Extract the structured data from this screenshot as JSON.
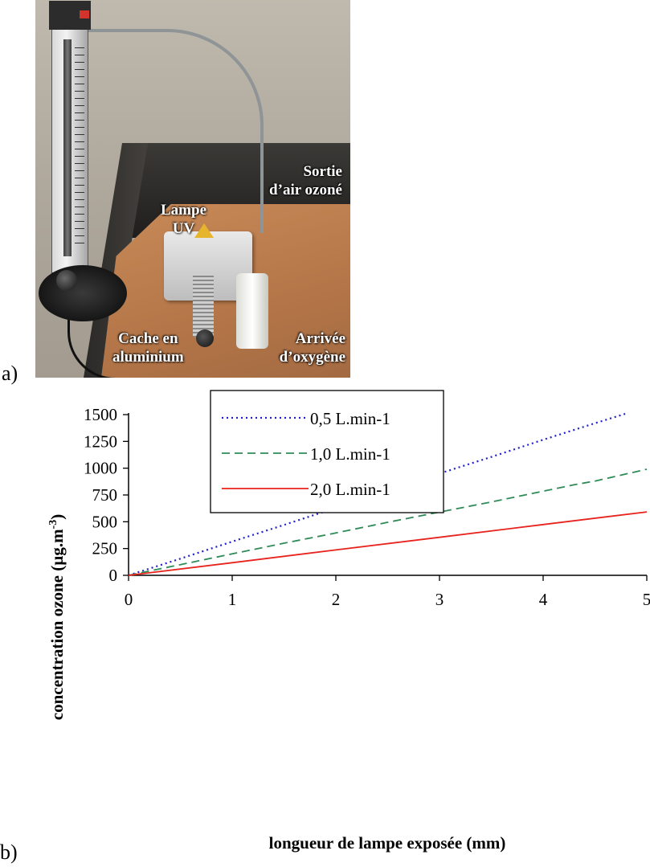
{
  "figure": {
    "panel_a_label": "a)",
    "panel_b_label": "b)"
  },
  "photo": {
    "labels": {
      "sortie": [
        "Sortie",
        "d’air ozoné"
      ],
      "lampe": [
        "Lampe",
        "UV"
      ],
      "cache": [
        "Cache en",
        "aluminium"
      ],
      "arrivee": [
        "Arrivée",
        "d’oxygène"
      ]
    }
  },
  "chart_data": {
    "type": "line",
    "title": "",
    "xlabel": "longueur de lampe exposée (mm)",
    "ylabel": "concentration ozone (µg.m",
    "ylabel_superscript": "-3",
    "ylabel_close": ")",
    "xlim": [
      0,
      5
    ],
    "ylim": [
      0,
      1500
    ],
    "x_ticks": [
      0,
      1,
      2,
      3,
      4,
      5
    ],
    "y_ticks": [
      0,
      250,
      500,
      750,
      1000,
      1250,
      1500
    ],
    "grid": false,
    "legend_position": "top-center",
    "series": [
      {
        "name": "0,5 L.min-1",
        "color": "#1f1fd0",
        "style": "dotted",
        "x": [
          0,
          0.5,
          1,
          1.5,
          2,
          2.5,
          3,
          3.5,
          4,
          4.5,
          4.8
        ],
        "y": [
          0,
          155,
          315,
          470,
          630,
          790,
          950,
          1105,
          1265,
          1420,
          1510
        ]
      },
      {
        "name": "1,0 L.min-1",
        "color": "#2e8b57",
        "style": "dashed",
        "x": [
          0,
          0.5,
          1,
          1.5,
          2,
          2.5,
          3,
          3.5,
          4,
          4.3,
          4.5,
          5
        ],
        "y": [
          0,
          100,
          200,
          300,
          395,
          495,
          590,
          685,
          785,
          845,
          880,
          990
        ]
      },
      {
        "name": "2,0 L.min-1",
        "color": "#e8231d",
        "style": "solid",
        "x": [
          0,
          1,
          2,
          3,
          4,
          5
        ],
        "y": [
          0,
          118,
          237,
          355,
          474,
          592
        ]
      }
    ]
  }
}
